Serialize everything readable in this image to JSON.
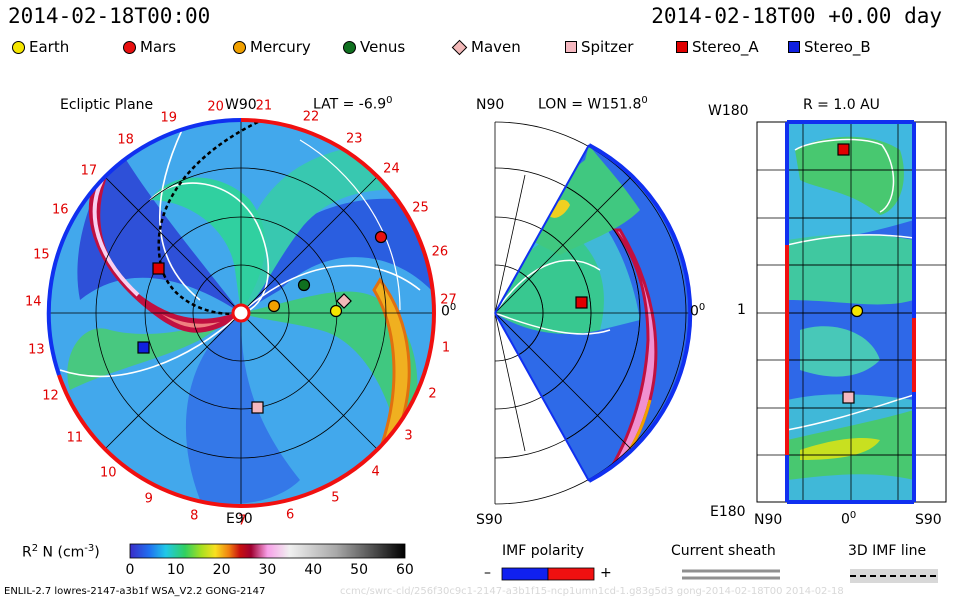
{
  "header": {
    "left_time": "2014-02-18T00:00",
    "right_time": "2014-02-18T00 +0.00 day"
  },
  "legend": [
    {
      "label": "Earth",
      "shape": "circle",
      "color": "#f5e600"
    },
    {
      "label": "Mars",
      "shape": "circle",
      "color": "#e81010"
    },
    {
      "label": "Mercury",
      "shape": "circle",
      "color": "#f0a000"
    },
    {
      "label": "Venus",
      "shape": "circle",
      "color": "#107020"
    },
    {
      "label": "Maven",
      "shape": "diamond",
      "color": "#f2b8b8"
    },
    {
      "label": "Spitzer",
      "shape": "square",
      "color": "#f5b8c0"
    },
    {
      "label": "Stereo_A",
      "shape": "square",
      "color": "#e00000"
    },
    {
      "label": "Stereo_B",
      "shape": "square",
      "color": "#1020e0"
    }
  ],
  "panels": {
    "ecliptic": {
      "title": "Ecliptic Plane",
      "top_label": "W90",
      "lat_label": "LAT = -6.9",
      "lat_sup": "0",
      "bottom_label": "E90",
      "right_label": "0",
      "right_sup": "0"
    },
    "meridional": {
      "top_left": "N90",
      "lon_label": "LON = W151.8",
      "lon_sup": "0",
      "bottom_left": "S90",
      "right_label": "0",
      "right_sup": "0"
    },
    "radial": {
      "r_label": "R = 1.0 AU",
      "top_left": "W180",
      "mid_left": "1",
      "bottom_left": "E180",
      "bottom_labels": [
        "N90",
        "0",
        "S90"
      ],
      "bottom_sup": "0"
    }
  },
  "colorbar": {
    "label": "R",
    "label_sup": "2",
    "label_rest": " N (cm",
    "label_unit_sup": "-3",
    "label_end": ")",
    "ticks": [
      "0",
      "10",
      "20",
      "30",
      "40",
      "50",
      "60"
    ]
  },
  "imf": {
    "polarity_title": "IMF polarity",
    "minus": "–",
    "plus": "+",
    "sheath_title": "Current sheath",
    "line_title": "3D IMF line"
  },
  "footer": {
    "left": "ENLIL-2.7 lowres-2147-a3b1f WSA_V2.2 GONG-2147",
    "right": "ccmc/swrc-cld/256f30c9c1-2147-a3b1f15-ncp1umn1cd-1.g83g5d3 gong-2014-02-18T00   2014-02-18"
  },
  "chart_data": {
    "type": "heatmap",
    "quantity": "R2 N (cm-3)",
    "colorbar_range": [
      0,
      60
    ],
    "colorbar_ticks": [
      0,
      10,
      20,
      30,
      40,
      50,
      60
    ],
    "ecliptic_rotation_labels": [
      "20",
      "21",
      "22",
      "23",
      "24",
      "25",
      "26",
      "27",
      "1",
      "2",
      "3",
      "4",
      "5",
      "6",
      "7",
      "8",
      "9",
      "10",
      "11",
      "12",
      "13",
      "14",
      "15",
      "16",
      "17",
      "18",
      "19"
    ],
    "bodies": [
      "Earth",
      "Mars",
      "Mercury",
      "Venus",
      "Maven",
      "Spitzer",
      "Stereo_A",
      "Stereo_B"
    ],
    "time": "2014-02-18T00:00",
    "time_offset_day": 0.0
  }
}
